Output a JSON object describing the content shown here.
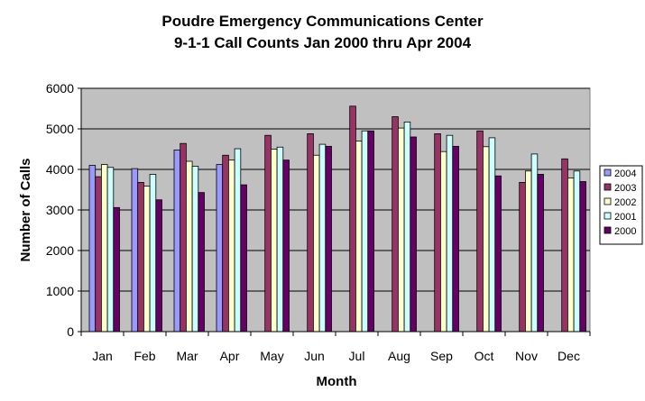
{
  "chart_data": {
    "type": "bar",
    "title_line1": "Poudre Emergency Communications Center",
    "title_line2": "9-1-1 Call Counts Jan 2000 thru Apr 2004",
    "xlabel": "Month",
    "ylabel": "Number of Calls",
    "ylim": [
      0,
      6000
    ],
    "yticks": [
      "0",
      "1000",
      "2000",
      "3000",
      "4000",
      "5000",
      "6000"
    ],
    "ytick_values": [
      0,
      1000,
      2000,
      3000,
      4000,
      5000,
      6000
    ],
    "grid": true,
    "legend_position": "right",
    "plot_background": "#c0c0c0",
    "categories": [
      "Jan",
      "Feb",
      "Mar",
      "Apr",
      "May",
      "Jun",
      "Jul",
      "Aug",
      "Sep",
      "Oct",
      "Nov",
      "Dec"
    ],
    "series": [
      {
        "name": "2004",
        "color": "#9999ff",
        "values": [
          4100,
          4020,
          4480,
          4120,
          null,
          null,
          null,
          null,
          null,
          null,
          null,
          null
        ]
      },
      {
        "name": "2003",
        "color": "#993366",
        "values": [
          3820,
          3680,
          4640,
          4350,
          4840,
          4880,
          5560,
          5300,
          4880,
          4950,
          3680,
          4260
        ]
      },
      {
        "name": "2002",
        "color": "#ffffcc",
        "values": [
          4120,
          3590,
          4200,
          4230,
          4500,
          4350,
          4700,
          5020,
          4440,
          4560,
          3960,
          3790
        ]
      },
      {
        "name": "2001",
        "color": "#ccffff",
        "values": [
          4050,
          3880,
          4080,
          4510,
          4550,
          4620,
          4950,
          5170,
          4840,
          4780,
          4380,
          3960
        ]
      },
      {
        "name": "2000",
        "color": "#660066",
        "values": [
          3060,
          3250,
          3430,
          3620,
          4230,
          4570,
          4950,
          4800,
          4570,
          3840,
          3880,
          3700
        ]
      }
    ]
  }
}
